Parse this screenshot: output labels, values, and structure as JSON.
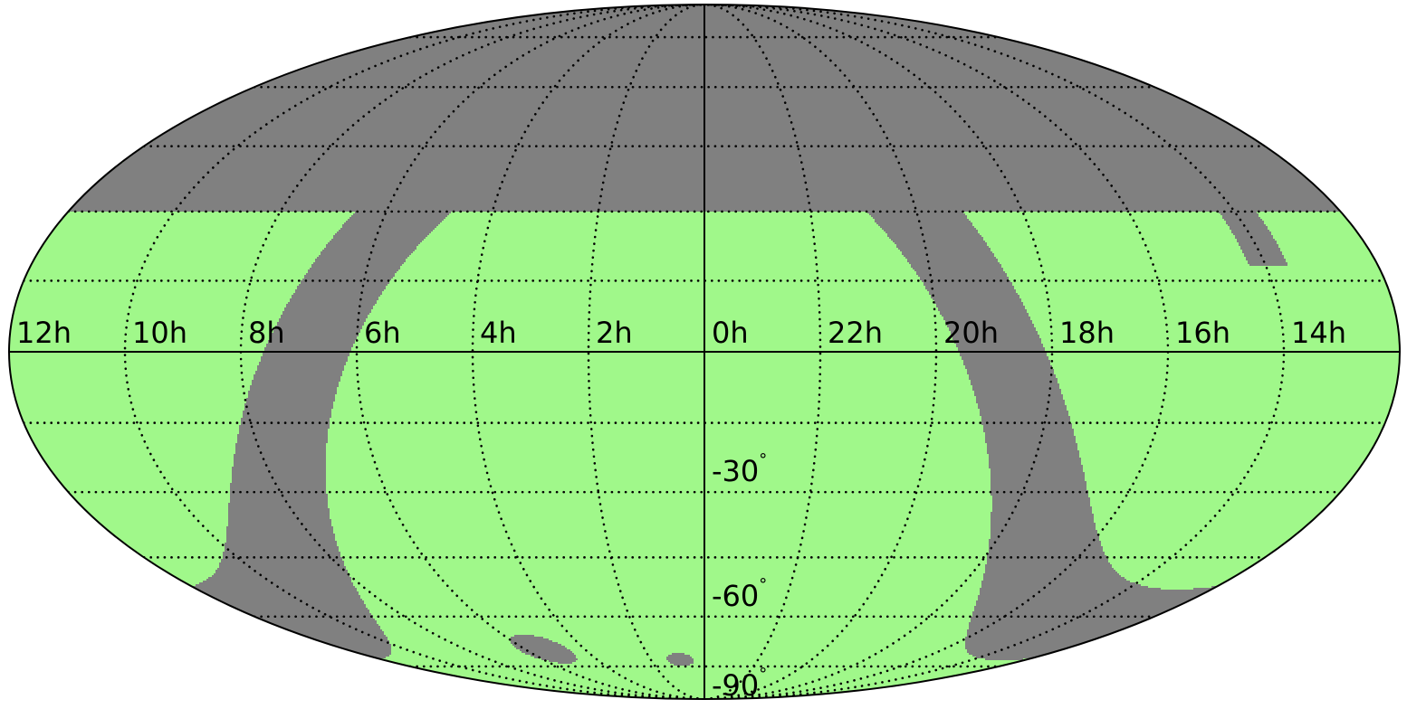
{
  "map": {
    "projection": "mollweide",
    "colors": {
      "covered": "#a0f88a",
      "masked": "#808080",
      "outline": "#000000",
      "grid": "#000000"
    },
    "dec_limit_north": 30,
    "graticule": {
      "ra_hours_step": 2,
      "dec_degrees_step": 15
    },
    "ra_labels": [
      {
        "text": "12h",
        "ra_hours": 12
      },
      {
        "text": "10h",
        "ra_hours": 10
      },
      {
        "text": "8h",
        "ra_hours": 8
      },
      {
        "text": "6h",
        "ra_hours": 6
      },
      {
        "text": "4h",
        "ra_hours": 4
      },
      {
        "text": "2h",
        "ra_hours": 2
      },
      {
        "text": "0h",
        "ra_hours": 0
      },
      {
        "text": "22h",
        "ra_hours": 22
      },
      {
        "text": "20h",
        "ra_hours": 20
      },
      {
        "text": "18h",
        "ra_hours": 18
      },
      {
        "text": "16h",
        "ra_hours": 16
      },
      {
        "text": "14h",
        "ra_hours": 14
      }
    ],
    "dec_labels": [
      {
        "text": "-30",
        "dec": -30,
        "unit": "°"
      },
      {
        "text": "-60",
        "dec": -60,
        "unit": "°"
      },
      {
        "text": "-90",
        "dec": -90,
        "unit": "°"
      }
    ],
    "galactic_plane_band": {
      "half_width_deg": 10
    },
    "magellanic_clouds": [
      {
        "name": "LMC",
        "ra_hours": 5.4,
        "dec": -69.5,
        "radius_deg": 4.5
      },
      {
        "name": "SMC",
        "ra_hours": 0.9,
        "dec": -72.8,
        "radius_deg": 2.2
      }
    ],
    "extra_masked_regions": [
      {
        "ra_hours_from": 13.6,
        "ra_hours_to": 14.3,
        "dec_from": 18,
        "dec_to": 30
      }
    ]
  }
}
